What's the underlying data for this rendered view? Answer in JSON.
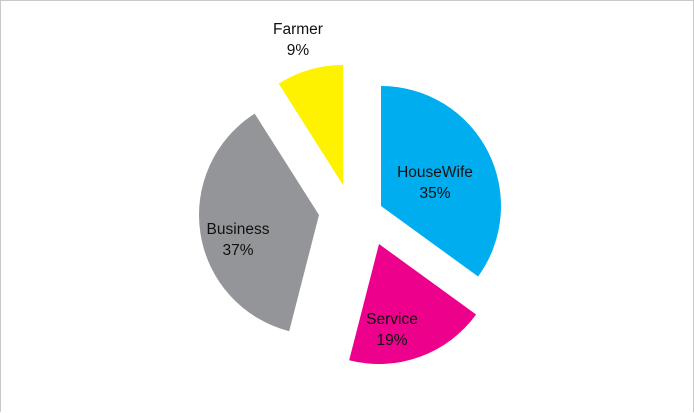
{
  "chart_data": {
    "type": "pie",
    "exploded": true,
    "slices": [
      {
        "name": "HouseWife",
        "value": 35,
        "label": "35%",
        "color": "#00aeef"
      },
      {
        "name": "Service",
        "value": 19,
        "label": "19%",
        "color": "#ec008c"
      },
      {
        "name": "Business",
        "value": 37,
        "label": "37%",
        "color": "#939598"
      },
      {
        "name": "Farmer",
        "value": 9,
        "label": "9%",
        "color": "#fff200"
      }
    ],
    "title": "",
    "legend": "none"
  }
}
